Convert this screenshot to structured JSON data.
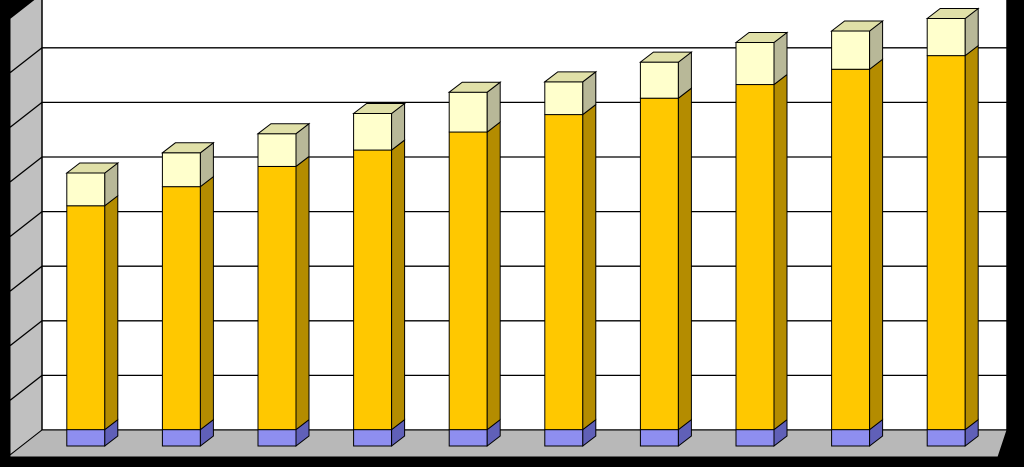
{
  "chart_data": {
    "type": "bar",
    "stacked": true,
    "three_d": true,
    "title": "",
    "xlabel": "",
    "ylabel": "",
    "categories": [
      "",
      "",
      "",
      "",
      "",
      "",
      "",
      "",
      "",
      ""
    ],
    "ylim": [
      0,
      8
    ],
    "grid": true,
    "legend": "none",
    "series": [
      {
        "color": "#8E8EF0",
        "values": [
          0.3,
          0.3,
          0.3,
          0.3,
          0.3,
          0.3,
          0.3,
          0.3,
          0.3,
          0.3
        ]
      },
      {
        "color": "#FFC800",
        "values": [
          4.1,
          4.45,
          4.82,
          5.12,
          5.45,
          5.77,
          6.07,
          6.32,
          6.6,
          6.85
        ]
      },
      {
        "color": "#FFFFCC",
        "values": [
          0.6,
          0.62,
          0.6,
          0.67,
          0.73,
          0.6,
          0.66,
          0.77,
          0.7,
          0.68
        ]
      }
    ]
  }
}
